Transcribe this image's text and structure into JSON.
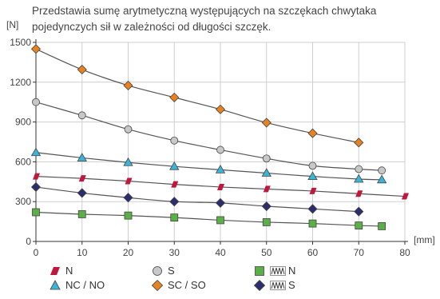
{
  "chart_data": {
    "type": "line",
    "title": "Przedstawia sumę arytmetyczną występujących na szczękach chwytaka pojedynczych sił w zależności od długości szczęk.",
    "ylabel": "[N]",
    "xlabel": "[mm]",
    "xlim": [
      0,
      80
    ],
    "ylim": [
      0,
      1500
    ],
    "xticks": [
      0,
      10,
      20,
      30,
      40,
      50,
      60,
      70,
      80
    ],
    "yticks": [
      0,
      300,
      600,
      900,
      1200,
      1500
    ],
    "grid": true,
    "legend_position": "bottom",
    "series": [
      {
        "name": "N",
        "marker": "parallelogram",
        "color": "#c0183c",
        "x": [
          0,
          10,
          20,
          30,
          40,
          50,
          60,
          70,
          80
        ],
        "y": [
          490,
          475,
          455,
          430,
          410,
          395,
          380,
          360,
          340
        ]
      },
      {
        "name": "NC / NO",
        "marker": "triangle",
        "color": "#3ab4d8",
        "x": [
          0,
          10,
          20,
          30,
          40,
          50,
          60,
          70,
          75
        ],
        "y": [
          670,
          630,
          595,
          565,
          540,
          515,
          490,
          470,
          465
        ]
      },
      {
        "name": "S",
        "marker": "circle",
        "color": "#c8c8c8",
        "x": [
          0,
          10,
          20,
          30,
          40,
          50,
          60,
          70,
          75
        ],
        "y": [
          1050,
          950,
          845,
          760,
          690,
          625,
          570,
          545,
          535
        ]
      },
      {
        "name": "SC / SO",
        "marker": "diamond",
        "color": "#e8821e",
        "x": [
          0,
          10,
          20,
          30,
          40,
          50,
          60,
          70
        ],
        "y": [
          1450,
          1295,
          1175,
          1085,
          995,
          895,
          815,
          745
        ]
      },
      {
        "name": "N",
        "legend_icon": "spring",
        "marker": "square",
        "color": "#5ab046",
        "x": [
          0,
          10,
          20,
          30,
          40,
          50,
          60,
          70,
          75
        ],
        "y": [
          220,
          205,
          195,
          180,
          160,
          145,
          135,
          120,
          115
        ]
      },
      {
        "name": "S",
        "legend_icon": "spring",
        "marker": "diamond",
        "color": "#2b2d6e",
        "x": [
          0,
          10,
          20,
          30,
          40,
          50,
          60,
          70
        ],
        "y": [
          410,
          365,
          330,
          300,
          290,
          265,
          245,
          225
        ]
      }
    ]
  }
}
